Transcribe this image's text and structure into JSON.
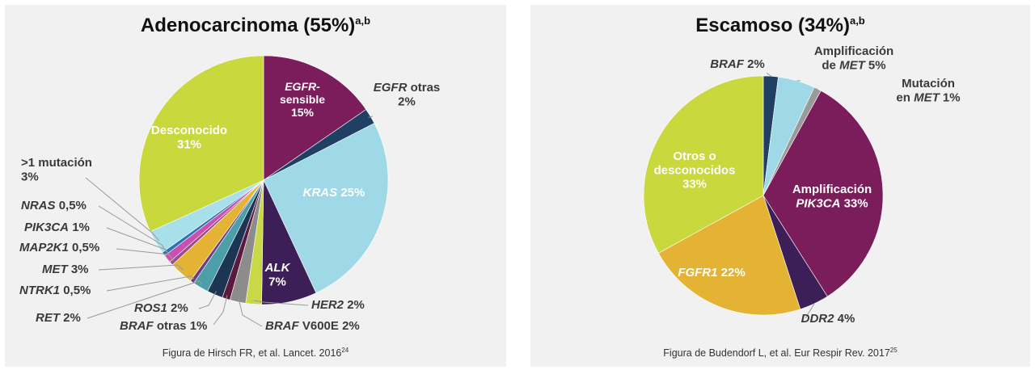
{
  "chart_data": [
    {
      "type": "pie",
      "title": "Adenocarcinoma (55%)",
      "title_superscript": "a,b",
      "caption": "Figura de Hirsch FR, et al. Lancet. 2016",
      "caption_superscript": "24",
      "slices": [
        {
          "label": "EGFR-sensible 15%",
          "value": 15,
          "color": "#7b1d5a"
        },
        {
          "label": "EGFR otras 2%",
          "value": 2,
          "color": "#1f3f63"
        },
        {
          "label": "KRAS 25%",
          "value": 25,
          "color": "#9fd8e6"
        },
        {
          "label": "ALK 7%",
          "value": 7,
          "color": "#3d1f57"
        },
        {
          "label": "HER2 2%",
          "value": 2,
          "color": "#c9d846"
        },
        {
          "label": "BRAF V600E 2%",
          "value": 2,
          "color": "#8c8c8c"
        },
        {
          "label": "BRAF otras 1%",
          "value": 1,
          "color": "#5a1a3f"
        },
        {
          "label": "ROS1 2%",
          "value": 2,
          "color": "#1c3552"
        },
        {
          "label": "RET 2%",
          "value": 2,
          "color": "#4c9ea8"
        },
        {
          "label": "NTRK1 0,5%",
          "value": 0.5,
          "color": "#6c3d82"
        },
        {
          "label": "MET 3%",
          "value": 3,
          "color": "#e5b333"
        },
        {
          "label": "MAP2K1 0,5%",
          "value": 0.5,
          "color": "#9b4a8a"
        },
        {
          "label": "PIK3CA 1%",
          "value": 1,
          "color": "#c94fb0"
        },
        {
          "label": "NRAS 0,5%",
          "value": 0.5,
          "color": "#2e72b5"
        },
        {
          "label": ">1 mutación 3%",
          "value": 3,
          "color": "#a8e0ea"
        },
        {
          "label": "Desconocido 31%",
          "value": 31,
          "color": "#c8d83d"
        }
      ]
    },
    {
      "type": "pie",
      "title": "Escamoso (34%)",
      "title_superscript": "a,b",
      "caption": "Figura de Budendorf L, et al. Eur Respir Rev. 2017",
      "caption_superscript": "25",
      "slices": [
        {
          "label": "BRAF 2%",
          "value": 2,
          "color": "#1f3f63"
        },
        {
          "label": "Amplificación de MET 5%",
          "value": 5,
          "color": "#9fd8e6"
        },
        {
          "label": "Mutación en MET 1%",
          "value": 1,
          "color": "#9a9a9a"
        },
        {
          "label": "Amplificación PIK3CA 33%",
          "value": 33,
          "color": "#7b1d5a"
        },
        {
          "label": "DDR2 4%",
          "value": 4,
          "color": "#3d1f57"
        },
        {
          "label": "FGFR1 22%",
          "value": 22,
          "color": "#e5b333"
        },
        {
          "label": "Otros o desconocidos 33%",
          "value": 33,
          "color": "#c8d83d"
        }
      ]
    }
  ]
}
